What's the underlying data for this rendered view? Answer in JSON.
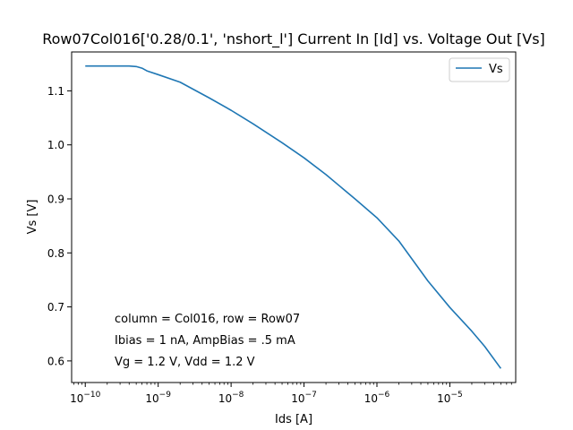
{
  "chart_data": {
    "type": "line",
    "title": "Row07Col016['0.28/0.1', 'nshort_l'] Current In [Id] vs. Voltage Out [Vs]",
    "xlabel": "Ids [A]",
    "ylabel": "Vs [V]",
    "x_scale": "log",
    "xlim": [
      6.5e-11,
      8e-05
    ],
    "ylim": [
      0.56,
      1.172
    ],
    "x_ticks": [
      {
        "value": 1e-10,
        "base": "10",
        "exp": "−10"
      },
      {
        "value": 1e-09,
        "base": "10",
        "exp": "−9"
      },
      {
        "value": 1e-08,
        "base": "10",
        "exp": "−8"
      },
      {
        "value": 1e-07,
        "base": "10",
        "exp": "−7"
      },
      {
        "value": 1e-06,
        "base": "10",
        "exp": "−6"
      },
      {
        "value": 1e-05,
        "base": "10",
        "exp": "−5"
      }
    ],
    "y_ticks": [
      "0.6",
      "0.7",
      "0.8",
      "0.9",
      "1.0",
      "1.1"
    ],
    "grid": false,
    "legend": {
      "placement": "top-right"
    },
    "series": [
      {
        "name": "Vs",
        "color": "#1f77b4",
        "x": [
          1e-10,
          2e-10,
          3e-10,
          4e-10,
          5e-10,
          6e-10,
          7e-10,
          1e-09,
          2e-09,
          5e-09,
          1e-08,
          2e-08,
          5e-08,
          1e-07,
          2e-07,
          5e-07,
          1e-06,
          2e-06,
          5e-06,
          1e-05,
          2e-05,
          3e-05,
          5e-05
        ],
        "y": [
          1.146,
          1.146,
          1.146,
          1.146,
          1.145,
          1.142,
          1.137,
          1.13,
          1.116,
          1.087,
          1.064,
          1.039,
          1.004,
          0.976,
          0.945,
          0.9,
          0.865,
          0.822,
          0.748,
          0.699,
          0.655,
          0.627,
          0.586
        ]
      }
    ],
    "annotations": [
      "column = Col016, row = Row07",
      "Ibias = 1 nA, AmpBias = .5 mA",
      "Vg = 1.2 V, Vdd = 1.2 V"
    ]
  }
}
